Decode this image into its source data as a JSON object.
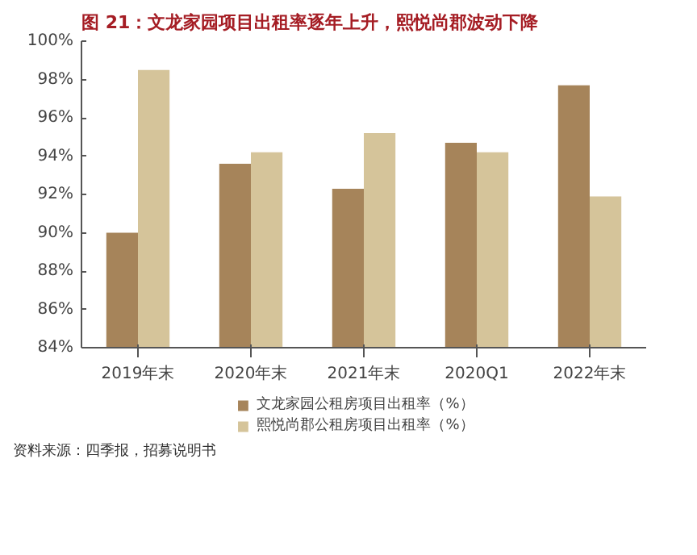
{
  "chart_data": {
    "type": "bar",
    "title": "图 21：文龙家园项目出租率逐年上升，熙悦尚郡波动下降",
    "categories": [
      "2019年末",
      "2020年末",
      "2021年末",
      "2020Q1",
      "2022年末"
    ],
    "series": [
      {
        "name": "文龙家园公租房项目出租率（%）",
        "color": "#a6845a",
        "values": [
          90.0,
          93.6,
          92.3,
          94.7,
          97.7
        ]
      },
      {
        "name": "熙悦尚郡公租房项目出租率（%）",
        "color": "#d5c49a",
        "values": [
          98.5,
          94.2,
          95.2,
          94.2,
          91.9
        ]
      }
    ],
    "ylim": [
      84,
      100
    ],
    "yticks": [
      {
        "value": 84,
        "label": "84%"
      },
      {
        "value": 86,
        "label": "86%"
      },
      {
        "value": 88,
        "label": "88%"
      },
      {
        "value": 90,
        "label": "90%"
      },
      {
        "value": 92,
        "label": "92%"
      },
      {
        "value": 94,
        "label": "94%"
      },
      {
        "value": 96,
        "label": "96%"
      },
      {
        "value": 98,
        "label": "98%"
      },
      {
        "value": 100,
        "label": "100%"
      }
    ],
    "grid": false,
    "legend": "bottom",
    "annotations": [
      "资料来源：四季报，招募说明书"
    ]
  }
}
